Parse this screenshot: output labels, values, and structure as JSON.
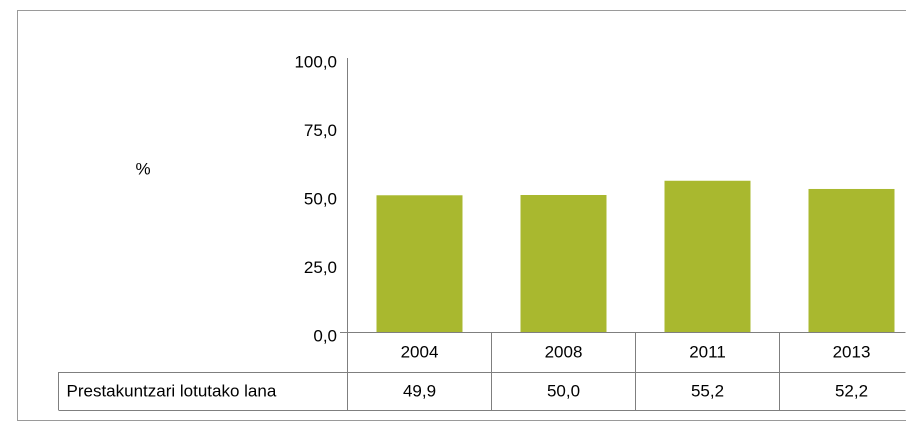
{
  "chart_data": {
    "type": "bar",
    "y_label": "%",
    "categories": [
      "2004",
      "2008",
      "2011",
      "2013"
    ],
    "series": [
      {
        "name": "Prestakuntzari lotutako lana",
        "color": "#a9b82f",
        "values": [
          49.9,
          50.0,
          55.2,
          52.2
        ],
        "value_labels": [
          "49,9",
          "50,0",
          "55,2",
          "52,2"
        ]
      }
    ],
    "ylim": [
      0,
      100
    ],
    "yticks": [
      {
        "value": 0,
        "label": "0,0"
      },
      {
        "value": 25,
        "label": "25,0"
      },
      {
        "value": 50,
        "label": "50,0"
      },
      {
        "value": 75,
        "label": "75,0"
      },
      {
        "value": 100,
        "label": "100,0"
      }
    ],
    "grid": false
  }
}
